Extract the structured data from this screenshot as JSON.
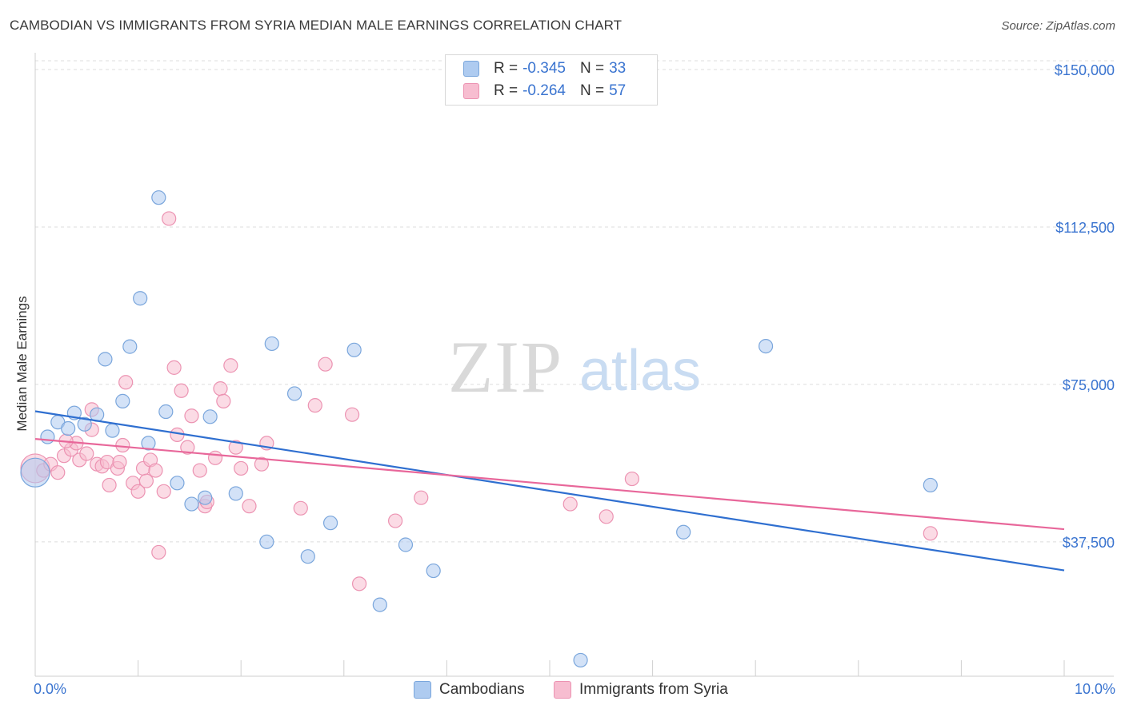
{
  "title": "CAMBODIAN VS IMMIGRANTS FROM SYRIA MEDIAN MALE EARNINGS CORRELATION CHART",
  "source": "Source: ZipAtlas.com",
  "watermark": {
    "zip": "ZIP",
    "atlas": "atlas"
  },
  "colors": {
    "blue_fill": "#aecbf0",
    "blue_stroke": "#7aa6dc",
    "blue_line": "#2f6fd0",
    "pink_fill": "#f7bdd0",
    "pink_stroke": "#ec93b2",
    "pink_line": "#e8679a",
    "axis_text": "#3a74d0",
    "grid": "#dddddd"
  },
  "legend": {
    "rows": [
      {
        "r_label": "R =",
        "r_value": "-0.345",
        "n_label": "N =",
        "n_value": "33"
      },
      {
        "r_label": "R =",
        "r_value": "-0.264",
        "n_label": "N =",
        "n_value": "57"
      }
    ]
  },
  "bottom_legend": [
    "Cambodians",
    "Immigrants from Syria"
  ],
  "chart_data": {
    "type": "scatter",
    "xlabel": "",
    "ylabel": "Median Male Earnings",
    "x_tick_labels": [
      "0.0%",
      "10.0%"
    ],
    "y_tick_labels": [
      "$150,000",
      "$112,500",
      "$75,000",
      "$37,500"
    ],
    "y_ticks": [
      150000,
      112500,
      75000,
      37500
    ],
    "xlim": [
      0,
      10
    ],
    "ylim": [
      7000,
      154000
    ],
    "series": [
      {
        "name": "Cambodians",
        "color": "blue",
        "trend": {
          "x": [
            0,
            10
          ],
          "y": [
            68600,
            30700
          ]
        },
        "points": [
          {
            "x": 0.0,
            "y": 54000,
            "big": true
          },
          {
            "x": 0.12,
            "y": 62500
          },
          {
            "x": 0.22,
            "y": 66000
          },
          {
            "x": 0.32,
            "y": 64500
          },
          {
            "x": 0.38,
            "y": 68200
          },
          {
            "x": 0.48,
            "y": 65500
          },
          {
            "x": 0.6,
            "y": 67800
          },
          {
            "x": 0.68,
            "y": 81000
          },
          {
            "x": 0.75,
            "y": 64000
          },
          {
            "x": 0.85,
            "y": 71000
          },
          {
            "x": 0.92,
            "y": 84000
          },
          {
            "x": 1.02,
            "y": 95500
          },
          {
            "x": 1.1,
            "y": 61000
          },
          {
            "x": 1.2,
            "y": 119500
          },
          {
            "x": 1.27,
            "y": 68500
          },
          {
            "x": 1.38,
            "y": 51500
          },
          {
            "x": 1.52,
            "y": 46500
          },
          {
            "x": 1.65,
            "y": 48000
          },
          {
            "x": 1.7,
            "y": 67300
          },
          {
            "x": 1.95,
            "y": 49000
          },
          {
            "x": 2.25,
            "y": 37500
          },
          {
            "x": 2.3,
            "y": 84700
          },
          {
            "x": 2.52,
            "y": 72800
          },
          {
            "x": 2.65,
            "y": 34000
          },
          {
            "x": 2.87,
            "y": 42000
          },
          {
            "x": 3.1,
            "y": 83200
          },
          {
            "x": 3.35,
            "y": 22500
          },
          {
            "x": 3.6,
            "y": 36800
          },
          {
            "x": 3.87,
            "y": 30600
          },
          {
            "x": 5.3,
            "y": 9300
          },
          {
            "x": 6.3,
            "y": 39800
          },
          {
            "x": 7.1,
            "y": 84100
          },
          {
            "x": 8.7,
            "y": 51000
          }
        ]
      },
      {
        "name": "Immigrants from Syria",
        "color": "pink",
        "trend": {
          "x": [
            0,
            10
          ],
          "y": [
            62000,
            40500
          ]
        },
        "points": [
          {
            "x": 0.0,
            "y": 55000,
            "big": true
          },
          {
            "x": 0.08,
            "y": 54500
          },
          {
            "x": 0.15,
            "y": 56000
          },
          {
            "x": 0.22,
            "y": 54000
          },
          {
            "x": 0.28,
            "y": 58000
          },
          {
            "x": 0.35,
            "y": 59500
          },
          {
            "x": 0.4,
            "y": 61000
          },
          {
            "x": 0.43,
            "y": 57000
          },
          {
            "x": 0.5,
            "y": 58500
          },
          {
            "x": 0.55,
            "y": 69000
          },
          {
            "x": 0.55,
            "y": 64200
          },
          {
            "x": 0.6,
            "y": 56000
          },
          {
            "x": 0.65,
            "y": 55500
          },
          {
            "x": 0.7,
            "y": 56500
          },
          {
            "x": 0.72,
            "y": 51000
          },
          {
            "x": 0.8,
            "y": 55000
          },
          {
            "x": 0.82,
            "y": 56500
          },
          {
            "x": 0.85,
            "y": 60500
          },
          {
            "x": 0.88,
            "y": 75500
          },
          {
            "x": 0.95,
            "y": 51500
          },
          {
            "x": 1.0,
            "y": 49500
          },
          {
            "x": 1.05,
            "y": 55000
          },
          {
            "x": 1.08,
            "y": 52000
          },
          {
            "x": 1.12,
            "y": 57000
          },
          {
            "x": 1.17,
            "y": 54500
          },
          {
            "x": 1.2,
            "y": 35000
          },
          {
            "x": 1.25,
            "y": 49500
          },
          {
            "x": 1.3,
            "y": 114500
          },
          {
            "x": 1.35,
            "y": 79000
          },
          {
            "x": 1.38,
            "y": 63000
          },
          {
            "x": 1.42,
            "y": 73500
          },
          {
            "x": 1.48,
            "y": 60000
          },
          {
            "x": 1.52,
            "y": 67500
          },
          {
            "x": 1.6,
            "y": 54500
          },
          {
            "x": 1.65,
            "y": 46000
          },
          {
            "x": 1.67,
            "y": 47000
          },
          {
            "x": 1.75,
            "y": 57500
          },
          {
            "x": 1.8,
            "y": 74000
          },
          {
            "x": 1.83,
            "y": 71000
          },
          {
            "x": 1.9,
            "y": 79500
          },
          {
            "x": 1.95,
            "y": 60000
          },
          {
            "x": 2.0,
            "y": 55000
          },
          {
            "x": 2.08,
            "y": 46000
          },
          {
            "x": 2.2,
            "y": 56000
          },
          {
            "x": 2.25,
            "y": 61000
          },
          {
            "x": 2.58,
            "y": 45500
          },
          {
            "x": 2.72,
            "y": 70000
          },
          {
            "x": 2.82,
            "y": 79800
          },
          {
            "x": 3.08,
            "y": 67800
          },
          {
            "x": 3.15,
            "y": 27500
          },
          {
            "x": 3.5,
            "y": 42500
          },
          {
            "x": 3.75,
            "y": 48000
          },
          {
            "x": 5.2,
            "y": 46500
          },
          {
            "x": 5.55,
            "y": 43500
          },
          {
            "x": 5.8,
            "y": 52500
          },
          {
            "x": 8.7,
            "y": 39500
          },
          {
            "x": 0.3,
            "y": 61500
          }
        ]
      }
    ]
  }
}
